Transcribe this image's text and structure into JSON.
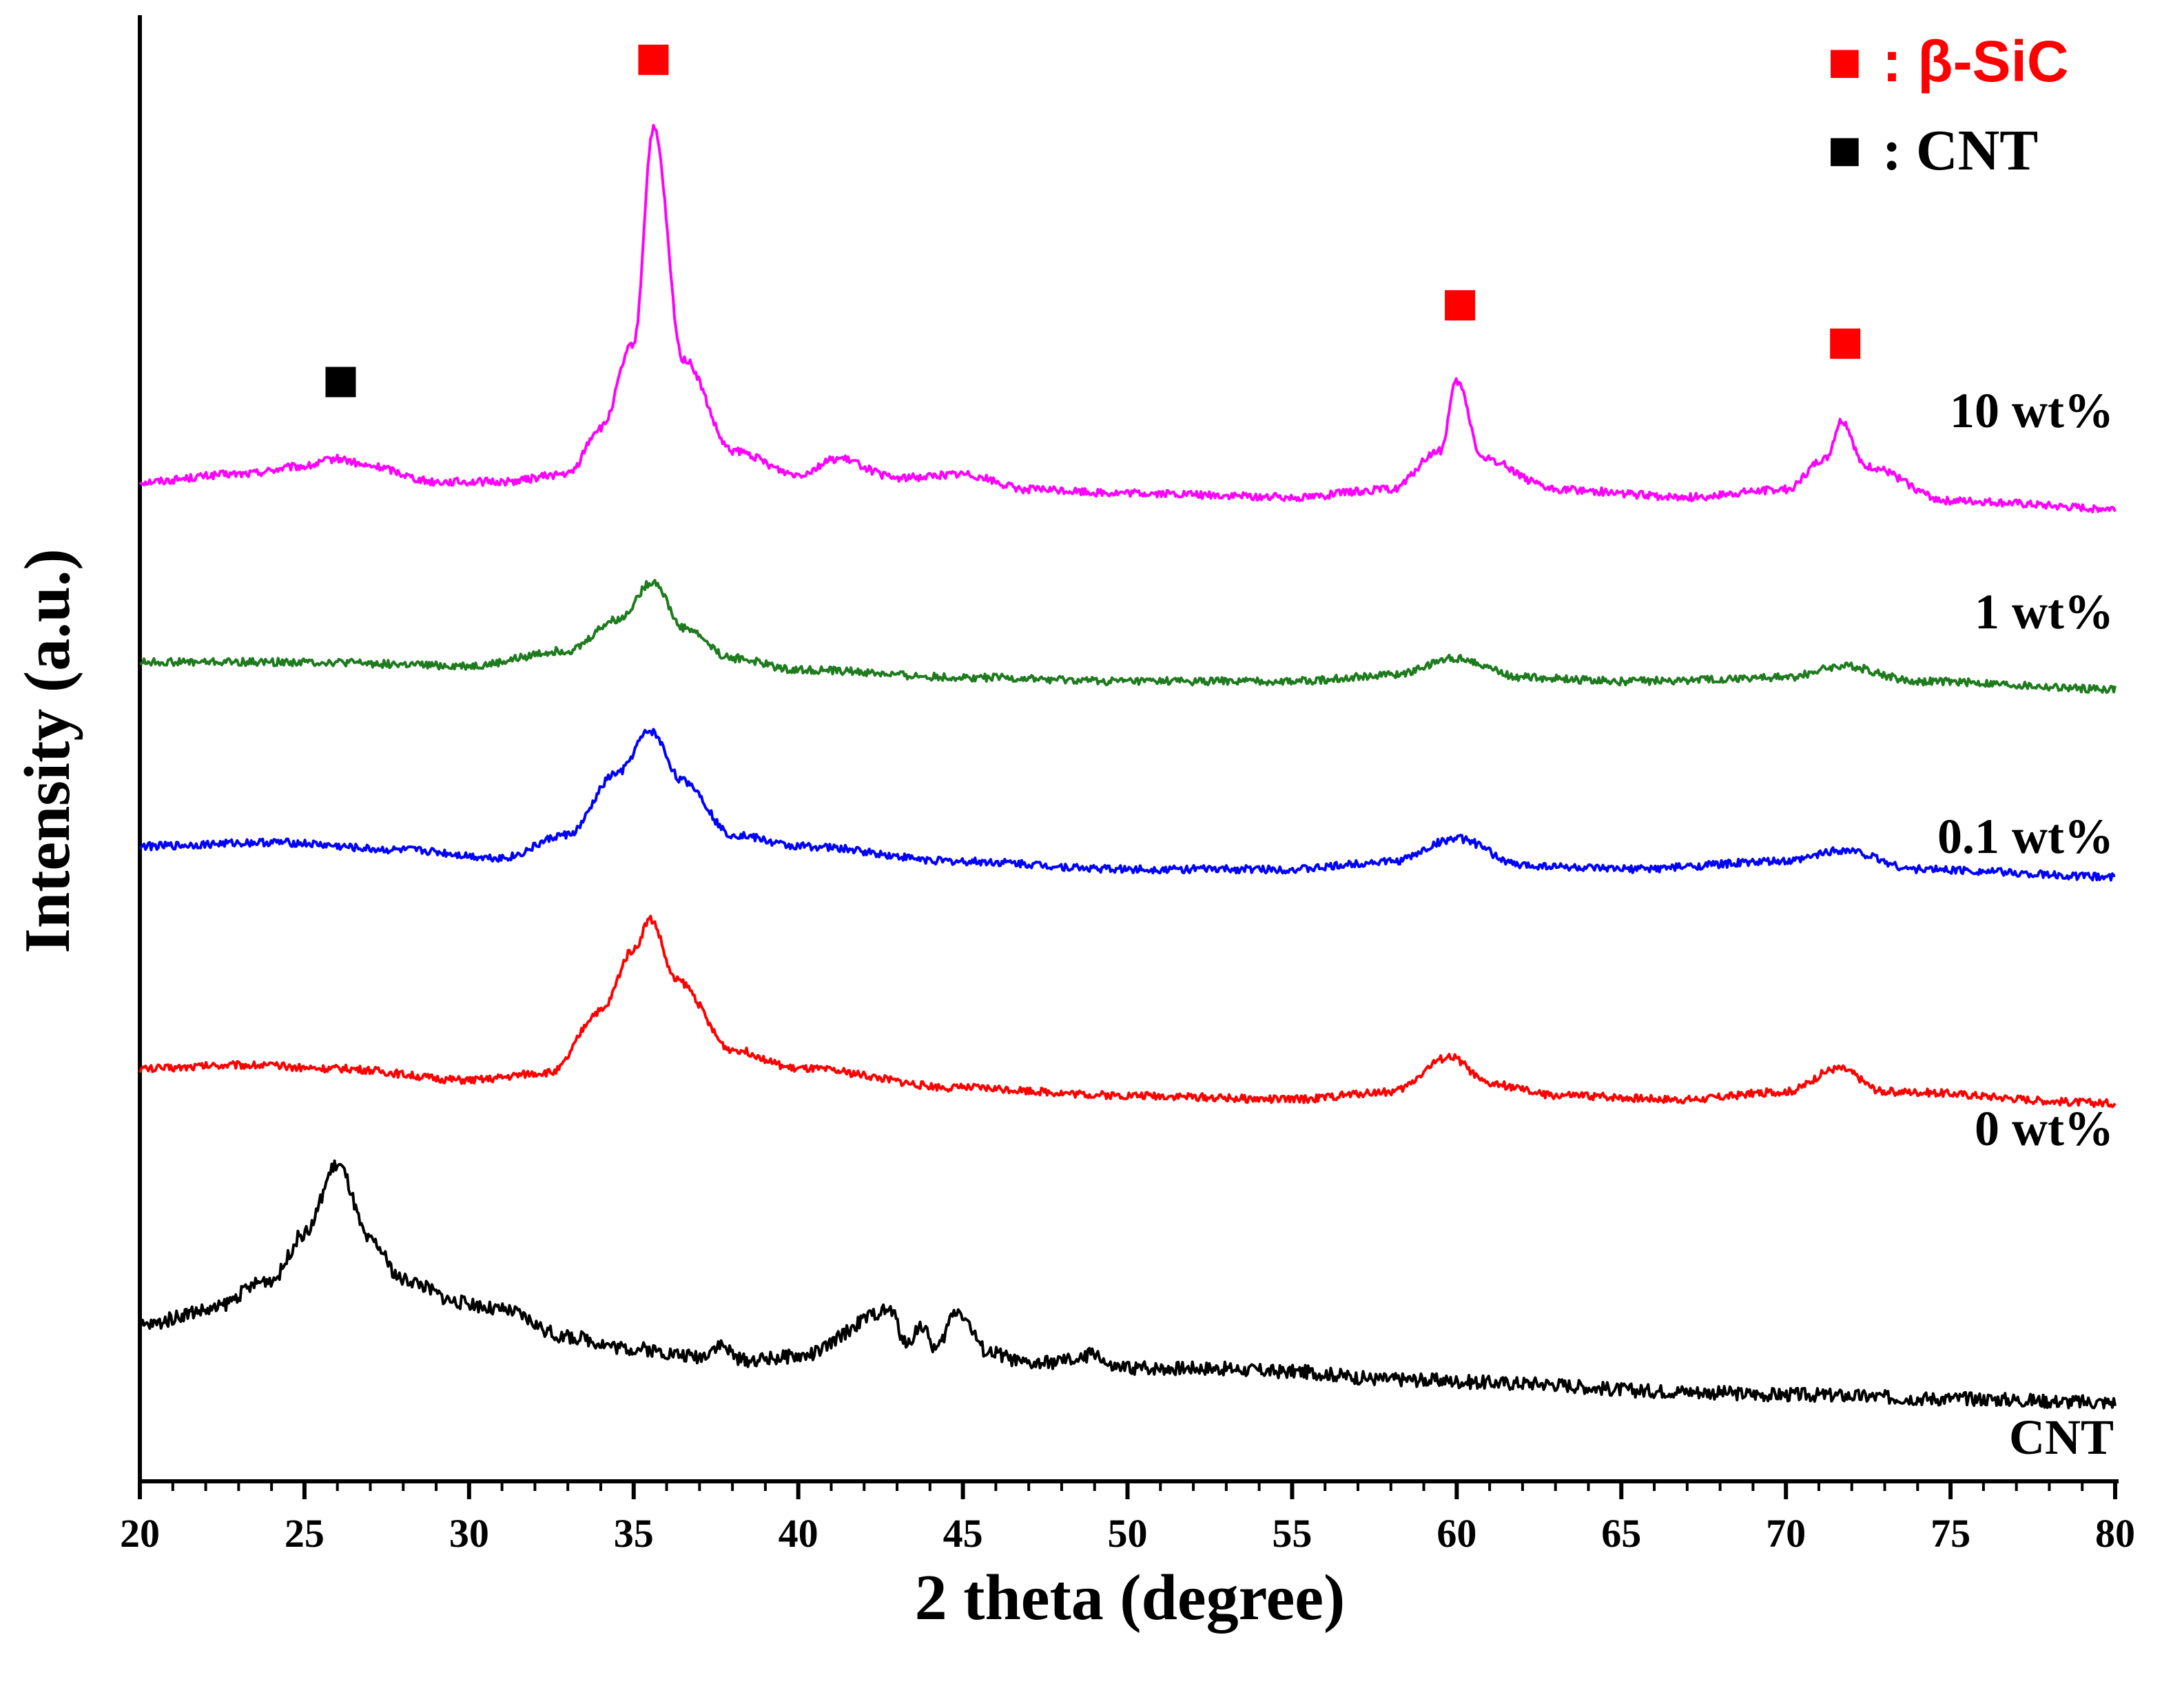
{
  "chart_data": {
    "type": "line",
    "title": "",
    "xlabel": "2 theta (degree)",
    "ylabel": "Intensity (a.u.)",
    "xlim": [
      20,
      80
    ],
    "xticks": [
      20,
      25,
      30,
      35,
      40,
      45,
      50,
      55,
      60,
      65,
      70,
      75,
      80
    ],
    "xtick_labels": [
      "20",
      "25",
      "30",
      "35",
      "40",
      "45",
      "50",
      "55",
      "60",
      "65",
      "70",
      "75",
      "80"
    ],
    "grid": false,
    "ylabels_shown": false,
    "legend": {
      "placement": "top-right",
      "entries": [
        {
          "marker": "■",
          "text": ": β-SiC",
          "color": "#ff0000"
        },
        {
          "marker": "■",
          "text": ": CNT",
          "color": "#000000"
        }
      ]
    },
    "series": [
      {
        "name": "10 wt%",
        "color": "#ff00ff",
        "x": [
          20,
          23,
          25,
          26,
          27,
          29,
          31,
          33,
          34,
          35,
          35.6,
          36.5,
          38,
          40,
          41.2,
          43,
          45,
          47,
          50,
          55,
          58,
          59.5,
          60,
          60.8,
          63,
          67,
          70,
          71.2,
          71.7,
          72.4,
          75,
          80
        ],
        "y": [
          8.9,
          9.0,
          9.1,
          9.2,
          9.1,
          8.9,
          8.9,
          9.0,
          9.6,
          10.7,
          13.5,
          10.5,
          9.3,
          9.0,
          9.2,
          8.95,
          9.0,
          8.8,
          8.75,
          8.7,
          8.8,
          9.3,
          10.2,
          9.2,
          8.8,
          8.7,
          8.8,
          9.2,
          9.7,
          9.1,
          8.65,
          8.55
        ]
      },
      {
        "name": "1 wt%",
        "color": "#1e7b1e",
        "x": [
          20,
          25,
          30,
          33,
          34.5,
          35.6,
          36.5,
          38,
          40,
          45,
          50,
          55,
          58,
          60,
          62,
          65,
          70,
          71.7,
          74,
          80
        ],
        "y": [
          6.55,
          6.55,
          6.5,
          6.7,
          7.1,
          7.6,
          7.0,
          6.6,
          6.45,
          6.35,
          6.3,
          6.3,
          6.38,
          6.6,
          6.35,
          6.3,
          6.35,
          6.5,
          6.3,
          6.2
        ]
      },
      {
        "name": "0.1 wt%",
        "color": "#0000ff",
        "x": [
          20,
          24,
          28,
          31,
          33,
          34.5,
          35.5,
          36.5,
          38,
          40,
          45,
          50,
          55,
          58,
          60,
          62,
          65,
          70,
          71.7,
          74,
          80
        ],
        "y": [
          4.15,
          4.2,
          4.1,
          4.0,
          4.3,
          5.1,
          5.65,
          5.0,
          4.3,
          4.15,
          3.95,
          3.85,
          3.85,
          3.95,
          4.25,
          3.9,
          3.85,
          3.95,
          4.1,
          3.85,
          3.75
        ]
      },
      {
        "name": "0 wt%",
        "color": "#ff0000",
        "x": [
          20,
          23,
          26,
          30,
          32.5,
          34,
          35,
          35.5,
          36.3,
          38,
          40,
          45,
          50,
          55,
          58,
          59.8,
          61,
          63,
          67,
          70,
          71.6,
          73,
          80
        ],
        "y": [
          1.25,
          1.3,
          1.25,
          1.1,
          1.2,
          2.0,
          2.8,
          3.2,
          2.4,
          1.5,
          1.25,
          1.0,
          0.9,
          0.85,
          0.95,
          1.4,
          1.05,
          0.9,
          0.85,
          0.95,
          1.25,
          0.95,
          0.8
        ]
      },
      {
        "name": "CNT",
        "color": "#000000",
        "x": [
          20,
          22,
          24,
          25,
          26,
          27,
          28,
          29.8,
          31,
          33,
          35,
          37,
          37.6,
          38.3,
          40,
          42.8,
          43.3,
          43.7,
          44.2,
          44.8,
          45.8,
          47,
          48.5,
          49,
          49.5,
          52,
          55,
          58,
          62,
          66,
          70,
          75,
          80
        ],
        "y": [
          -2.1,
          -1.9,
          -1.5,
          -0.9,
          0.0,
          -1.0,
          -1.5,
          -1.8,
          -1.9,
          -2.25,
          -2.4,
          -2.5,
          -2.35,
          -2.55,
          -2.5,
          -1.9,
          -2.35,
          -2.1,
          -2.4,
          -1.9,
          -2.45,
          -2.6,
          -2.55,
          -2.45,
          -2.65,
          -2.65,
          -2.7,
          -2.8,
          -2.85,
          -2.95,
          -3.0,
          -3.05,
          -3.1
        ]
      }
    ],
    "annotations": [
      {
        "marker": "■",
        "color": "#ff0000",
        "x": 35.6,
        "y": 14.4
      },
      {
        "marker": "■",
        "color": "#ff0000",
        "x": 60.1,
        "y": 11.2
      },
      {
        "marker": "■",
        "color": "#ff0000",
        "x": 71.8,
        "y": 10.7
      },
      {
        "marker": "■",
        "color": "#000000",
        "x": 26.1,
        "y": 10.2
      }
    ]
  }
}
